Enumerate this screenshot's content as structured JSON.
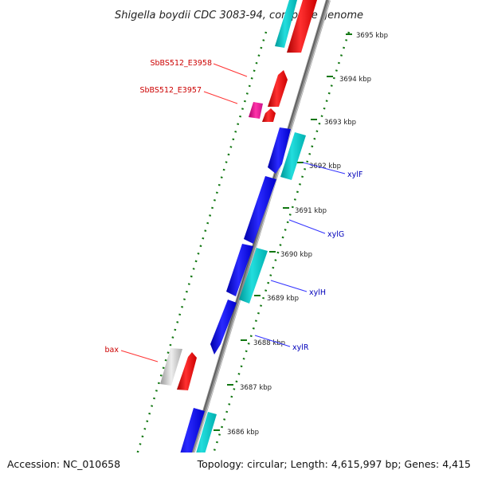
{
  "title": "Shigella boydii CDC 3083-94, complete genome",
  "footer": {
    "accession": "Accession: NC_010658",
    "summary": "Topology: circular; Length: 4,615,997 bp; Genes: 4,415"
  },
  "scale_ticks": [
    "3695 kbp",
    "3694 kbp",
    "3693 kbp",
    "3692 kbp",
    "3691 kbp",
    "3690 kbp",
    "3689 kbp",
    "3688 kbp",
    "3687 kbp",
    "3686 kbp"
  ],
  "gene_labels": {
    "left": [
      "SbBS512_E3958",
      "SbBS512_E3957",
      "bax"
    ],
    "right": [
      "xylF",
      "xylG",
      "xylH",
      "xylR"
    ]
  },
  "colors": {
    "forward_cds": "#ff0000",
    "reverse_cds": "#0000ff",
    "forward_rna": "#00cccc",
    "other": "#ee1199",
    "pseudo": "#bbbbbb",
    "backbone": "#808080",
    "ticks": "#117711",
    "left_label": "#cc0000",
    "right_label": "#0000bb"
  }
}
